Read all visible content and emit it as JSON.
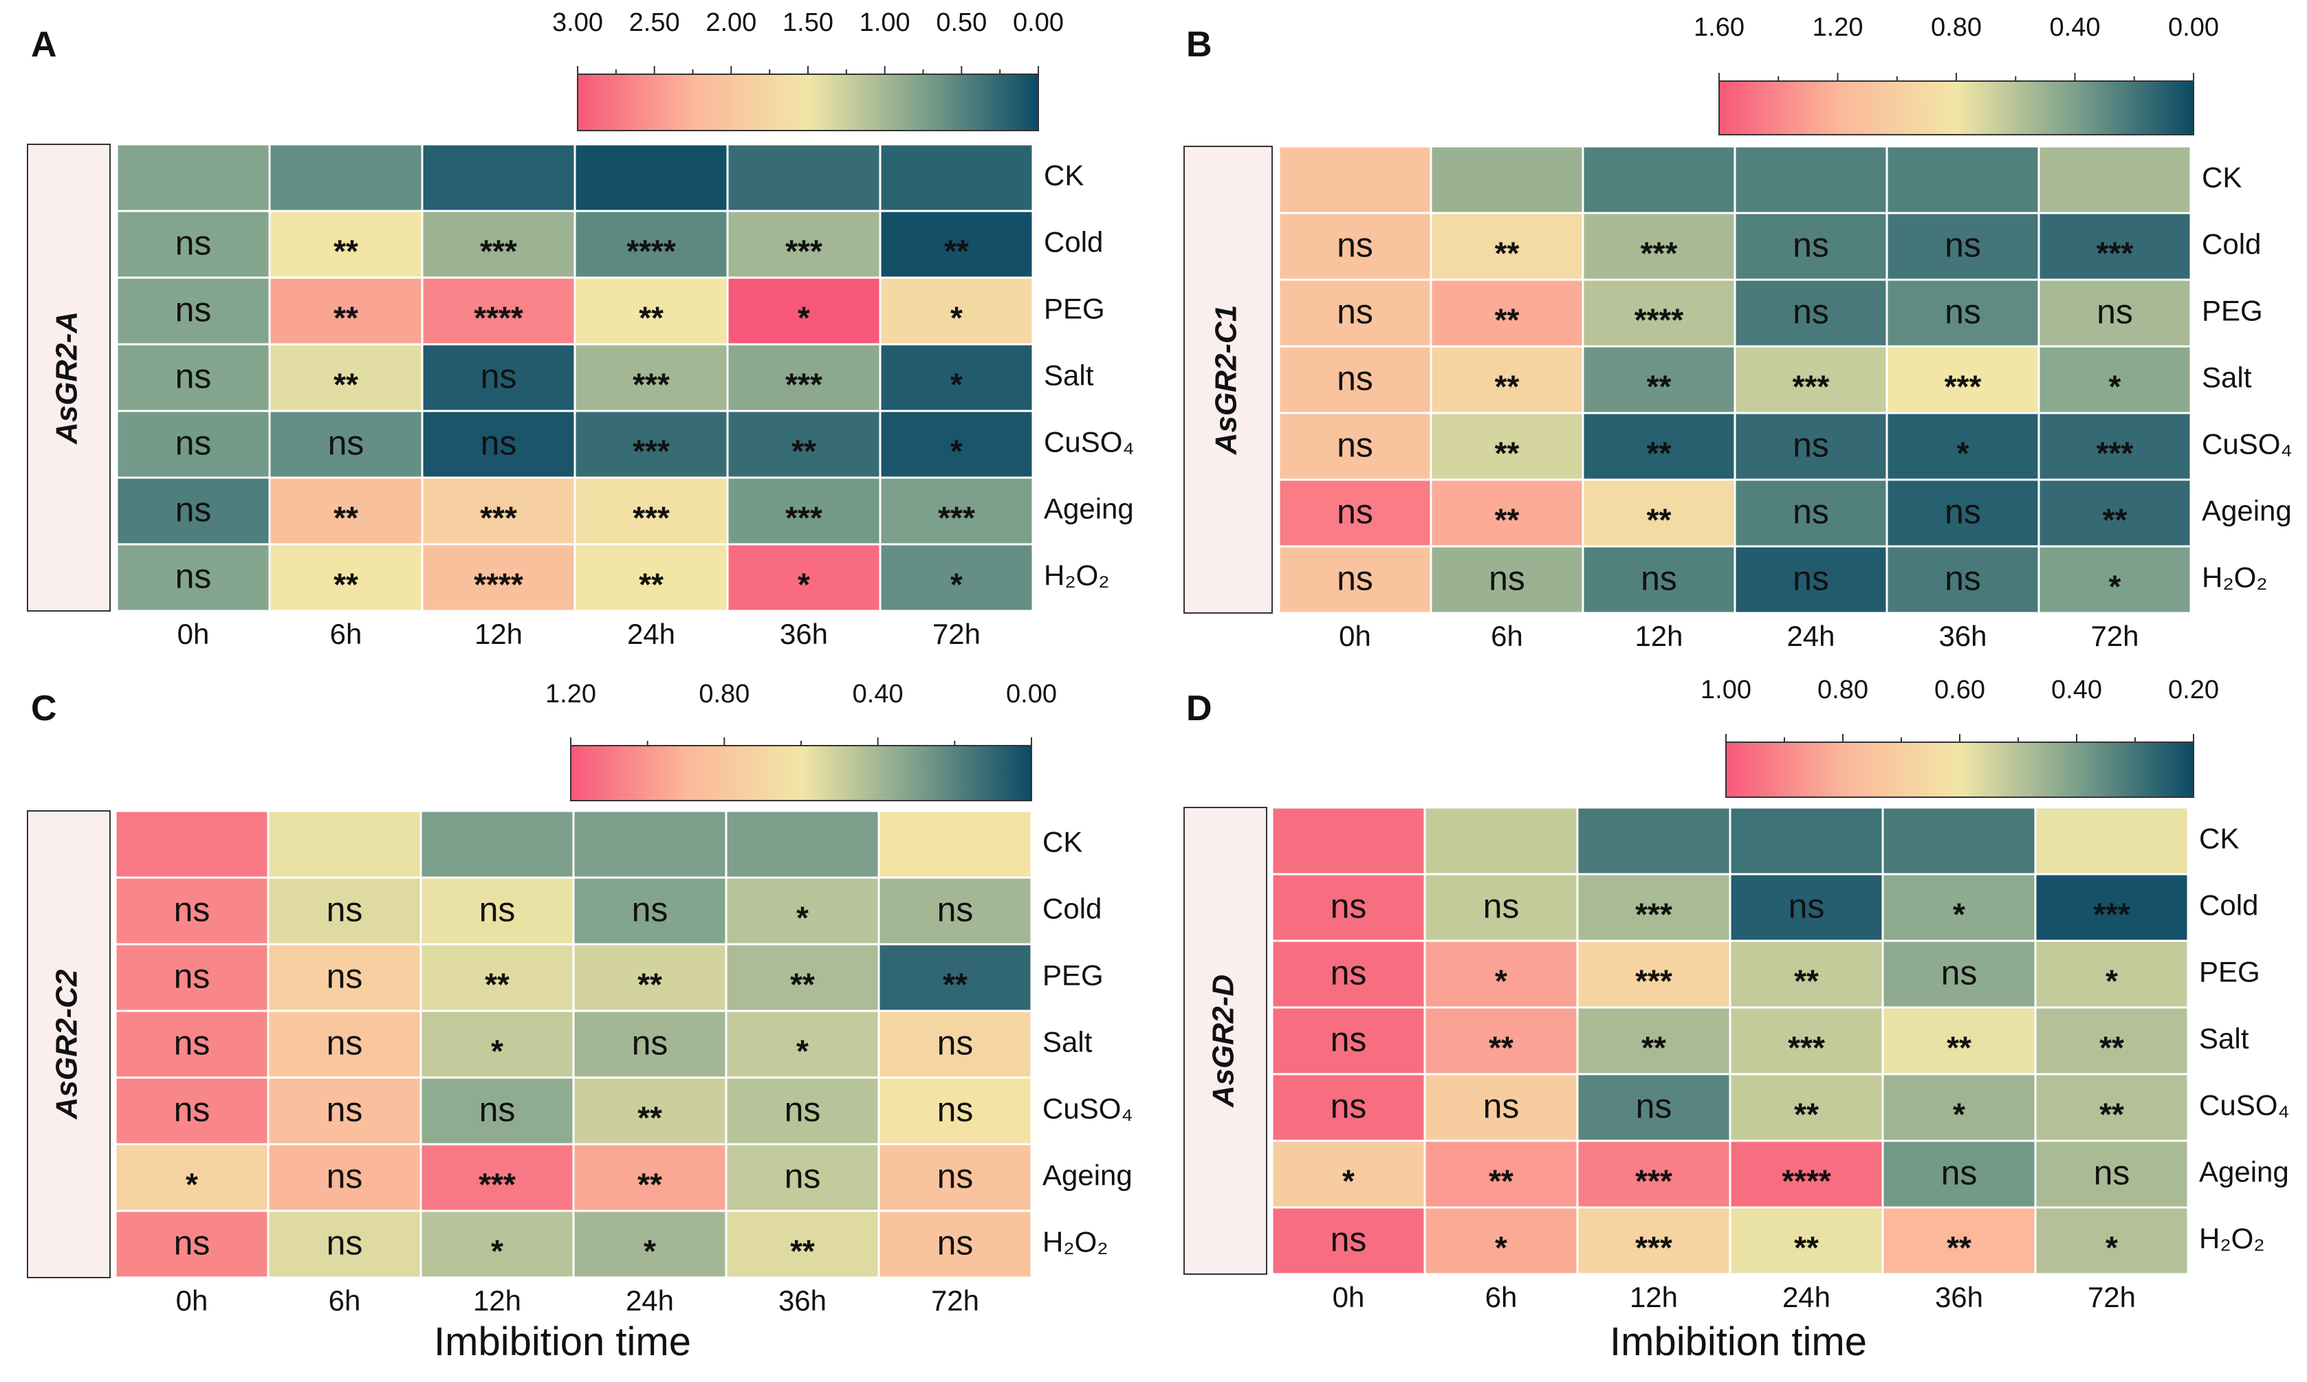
{
  "figure": {
    "xlabel": "Imbibition time"
  },
  "chart_data": [
    {
      "type": "heatmap",
      "panel_label": "A",
      "gene_label": "AsGR2-A",
      "columns": [
        "0h",
        "6h",
        "12h",
        "24h",
        "36h",
        "72h"
      ],
      "rows": [
        "CK",
        "Cold",
        "PEG",
        "Salt",
        "CuSO₄",
        "Ageing",
        "H₂O₂"
      ],
      "colorbar": {
        "ticks": [
          "3.00",
          "2.50",
          "2.00",
          "1.50",
          "1.00",
          "0.50",
          "0.00"
        ],
        "min": 0.0,
        "max": 3.0,
        "reversed": true
      },
      "values": [
        [
          0.8,
          0.6,
          0.18,
          0.05,
          0.3,
          0.22
        ],
        [
          0.8,
          1.5,
          0.95,
          0.55,
          1.0,
          0.05
        ],
        [
          0.8,
          2.4,
          2.65,
          1.5,
          3.0,
          1.7
        ],
        [
          0.8,
          1.4,
          0.15,
          1.0,
          0.85,
          0.15
        ],
        [
          0.7,
          0.6,
          0.1,
          0.3,
          0.3,
          0.1
        ],
        [
          0.45,
          2.1,
          1.85,
          1.6,
          0.7,
          0.75
        ],
        [
          0.8,
          1.5,
          2.1,
          1.5,
          2.85,
          0.6
        ]
      ],
      "significance": [
        [
          "",
          "",
          "",
          "",
          "",
          ""
        ],
        [
          "ns",
          "**",
          "***",
          "****",
          "***",
          "**"
        ],
        [
          "ns",
          "**",
          "****",
          "**",
          "*",
          "*"
        ],
        [
          "ns",
          "**",
          "ns",
          "***",
          "***",
          "*"
        ],
        [
          "ns",
          "ns",
          "ns",
          "***",
          "**",
          "*"
        ],
        [
          "ns",
          "**",
          "***",
          "***",
          "***",
          "***"
        ],
        [
          "ns",
          "**",
          "****",
          "**",
          "*",
          "*"
        ]
      ]
    },
    {
      "type": "heatmap",
      "panel_label": "B",
      "gene_label": "AsGR2-C1",
      "columns": [
        "0h",
        "6h",
        "12h",
        "24h",
        "36h",
        "72h"
      ],
      "rows": [
        "CK",
        "Cold",
        "PEG",
        "Salt",
        "CuSO₄",
        "Ageing",
        "H₂O₂"
      ],
      "colorbar": {
        "ticks": [
          "1.60",
          "1.20",
          "0.80",
          "0.40",
          "0.00"
        ],
        "min": 0.0,
        "max": 1.6,
        "reversed": true
      },
      "values": [
        [
          1.1,
          0.5,
          0.25,
          0.25,
          0.25,
          0.55
        ],
        [
          1.1,
          0.9,
          0.55,
          0.25,
          0.2,
          0.15
        ],
        [
          1.1,
          1.25,
          0.6,
          0.22,
          0.3,
          0.55
        ],
        [
          1.1,
          0.95,
          0.35,
          0.65,
          0.8,
          0.45
        ],
        [
          1.1,
          0.7,
          0.1,
          0.15,
          0.1,
          0.15
        ],
        [
          1.45,
          1.25,
          0.9,
          0.25,
          0.1,
          0.15
        ],
        [
          1.1,
          0.5,
          0.25,
          0.08,
          0.22,
          0.4
        ]
      ],
      "significance": [
        [
          "",
          "",
          "",
          "",
          "",
          ""
        ],
        [
          "ns",
          "**",
          "***",
          "ns",
          "ns",
          "***"
        ],
        [
          "ns",
          "**",
          "****",
          "ns",
          "ns",
          "ns"
        ],
        [
          "ns",
          "**",
          "**",
          "***",
          "***",
          "*"
        ],
        [
          "ns",
          "**",
          "**",
          "ns",
          "*",
          "***"
        ],
        [
          "ns",
          "**",
          "**",
          "ns",
          "ns",
          "**"
        ],
        [
          "ns",
          "ns",
          "ns",
          "ns",
          "ns",
          "*"
        ]
      ]
    },
    {
      "type": "heatmap",
      "panel_label": "C",
      "gene_label": "AsGR2-C2",
      "columns": [
        "0h",
        "6h",
        "12h",
        "24h",
        "36h",
        "72h"
      ],
      "rows": [
        "CK",
        "Cold",
        "PEG",
        "Salt",
        "CuSO₄",
        "Ageing",
        "H₂O₂"
      ],
      "colorbar": {
        "ticks": [
          "1.20",
          "0.80",
          "0.40",
          "0.00"
        ],
        "min": 0.0,
        "max": 1.2,
        "reversed": true
      },
      "values": [
        [
          1.1,
          0.58,
          0.3,
          0.3,
          0.3,
          0.62
        ],
        [
          1.05,
          0.55,
          0.58,
          0.32,
          0.45,
          0.4
        ],
        [
          1.05,
          0.75,
          0.55,
          0.52,
          0.42,
          0.1
        ],
        [
          1.05,
          0.8,
          0.48,
          0.4,
          0.48,
          0.7
        ],
        [
          1.05,
          0.85,
          0.35,
          0.5,
          0.45,
          0.62
        ],
        [
          0.72,
          0.9,
          1.1,
          0.95,
          0.48,
          0.82
        ],
        [
          1.05,
          0.55,
          0.45,
          0.4,
          0.55,
          0.82
        ]
      ],
      "significance": [
        [
          "",
          "",
          "",
          "",
          "",
          ""
        ],
        [
          "ns",
          "ns",
          "ns",
          "ns",
          "*",
          "ns"
        ],
        [
          "ns",
          "ns",
          "**",
          "**",
          "**",
          "**"
        ],
        [
          "ns",
          "ns",
          "*",
          "ns",
          "*",
          "ns"
        ],
        [
          "ns",
          "ns",
          "ns",
          "**",
          "ns",
          "ns"
        ],
        [
          "*",
          "ns",
          "***",
          "**",
          "ns",
          "ns"
        ],
        [
          "ns",
          "ns",
          "*",
          "*",
          "**",
          "ns"
        ]
      ]
    },
    {
      "type": "heatmap",
      "panel_label": "D",
      "gene_label": "AsGR2-D",
      "columns": [
        "0h",
        "6h",
        "12h",
        "24h",
        "36h",
        "72h"
      ],
      "rows": [
        "CK",
        "Cold",
        "PEG",
        "Salt",
        "CuSO₄",
        "Ageing",
        "H₂O₂"
      ],
      "colorbar": {
        "ticks": [
          "1.00",
          "0.80",
          "0.60",
          "0.40",
          "0.20"
        ],
        "min": 0.2,
        "max": 1.07,
        "reversed": true
      },
      "values": [
        [
          1.02,
          0.55,
          0.32,
          0.3,
          0.32,
          0.62
        ],
        [
          1.02,
          0.55,
          0.5,
          0.25,
          0.45,
          0.22
        ],
        [
          1.02,
          0.9,
          0.72,
          0.55,
          0.45,
          0.55
        ],
        [
          1.02,
          0.9,
          0.5,
          0.55,
          0.62,
          0.52
        ],
        [
          1.02,
          0.75,
          0.35,
          0.55,
          0.48,
          0.52
        ],
        [
          0.75,
          0.92,
          0.98,
          1.02,
          0.4,
          0.5
        ],
        [
          1.02,
          0.88,
          0.72,
          0.62,
          0.85,
          0.52
        ]
      ],
      "significance": [
        [
          "",
          "",
          "",
          "",
          "",
          ""
        ],
        [
          "ns",
          "ns",
          "***",
          "ns",
          "*",
          "***"
        ],
        [
          "ns",
          "*",
          "***",
          "**",
          "ns",
          "*"
        ],
        [
          "ns",
          "**",
          "**",
          "***",
          "**",
          "**"
        ],
        [
          "ns",
          "ns",
          "ns",
          "**",
          "*",
          "**"
        ],
        [
          "*",
          "**",
          "***",
          "****",
          "ns",
          "ns"
        ],
        [
          "ns",
          "*",
          "***",
          "**",
          "**",
          "*"
        ]
      ]
    }
  ]
}
